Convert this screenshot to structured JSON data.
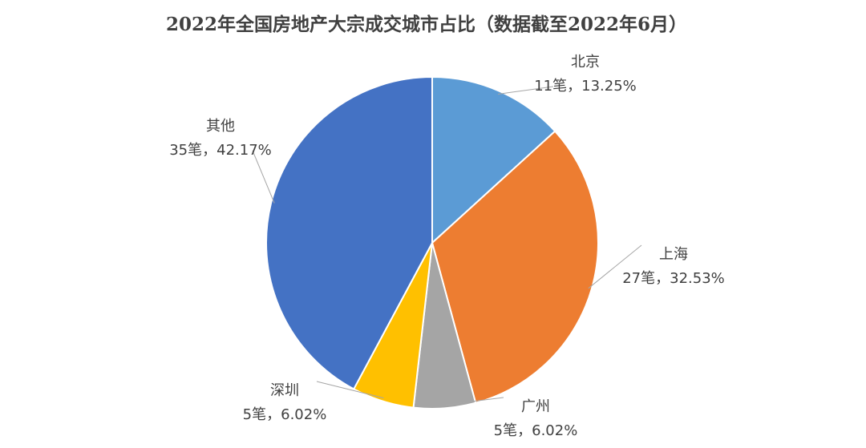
{
  "chart_data": {
    "type": "pie",
    "title": "2022年全国房地产大宗成交城市占比（数据截至2022年6月）",
    "categories": [
      "北京",
      "上海",
      "广州",
      "深圳",
      "其他"
    ],
    "values": [
      11,
      27,
      5,
      5,
      35
    ],
    "value_labels": [
      "11笔，13.25%",
      "27笔，32.53%",
      "5笔，6.02%",
      "5笔，6.02%",
      "35笔，42.17%"
    ],
    "colors": [
      "#5b9bd5",
      "#ed7d31",
      "#a5a5a5",
      "#ffc000",
      "#4472c4"
    ]
  }
}
